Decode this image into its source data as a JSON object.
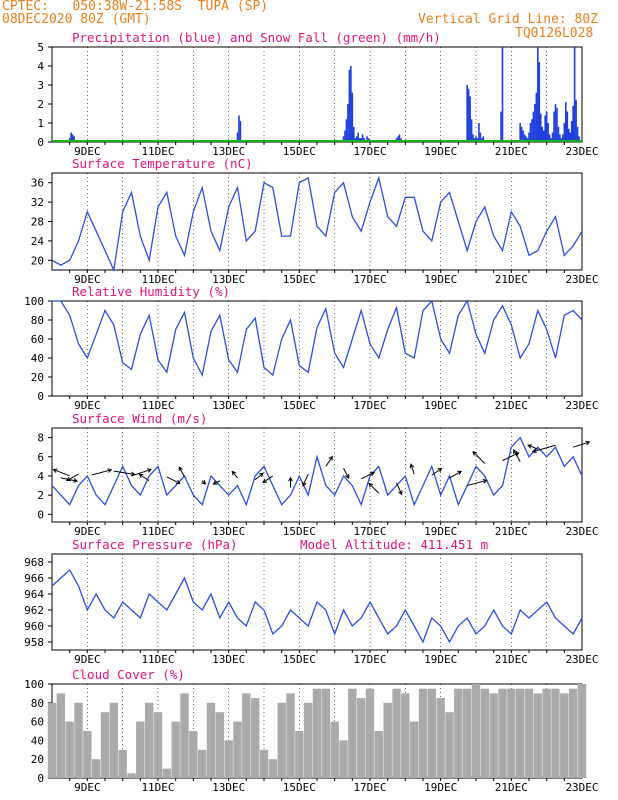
{
  "header": {
    "line1": "CPTEC:   050:38W-21:58S  TUPA (SP)",
    "line2": "08DEC2020 80Z (GMT)",
    "grid_note": "Vertical Grid Line: 80Z",
    "code": "TQ0126L028"
  },
  "colors": {
    "header": "#e8801e",
    "title": "#e0157a",
    "precip": "#1f3fdc",
    "snow": "#17b317",
    "series": "#2d4fe0",
    "cloud": "#aaaaaa",
    "frame": "#000000"
  },
  "x_ticks": [
    "9DEC",
    "11DEC",
    "13DEC",
    "15DEC",
    "17DEC",
    "19DEC",
    "21DEC",
    "23DEC"
  ],
  "chart_data": [
    {
      "id": "precip",
      "type": "bar",
      "title": "Precipitation (blue) and Snow Fall (green) (mm/h)",
      "yticks": [
        0,
        1,
        2,
        3,
        4,
        5
      ],
      "ylim": [
        0,
        5
      ],
      "x_unit": "hours since 08DEC2020 00Z",
      "xlim": [
        0,
        360
      ],
      "series": [
        {
          "name": "Precipitation",
          "color_key": "precip",
          "x": [
            12,
            13,
            14,
            15,
            126,
            127,
            128,
            198,
            199,
            200,
            201,
            202,
            203,
            204,
            205,
            206,
            207,
            208,
            209,
            210,
            211,
            212,
            213,
            214,
            215,
            234,
            235,
            236,
            237,
            282,
            283,
            284,
            285,
            286,
            287,
            288,
            289,
            290,
            291,
            292,
            293,
            305,
            306,
            318,
            319,
            320,
            321,
            322,
            323,
            324,
            325,
            326,
            327,
            328,
            329,
            330,
            331,
            332,
            333,
            334,
            335,
            336,
            337,
            338,
            339,
            340,
            341,
            342,
            343,
            344,
            345,
            346,
            347,
            348,
            349,
            350,
            351,
            352,
            353,
            354,
            355,
            356,
            357,
            358
          ],
          "values": [
            0.2,
            0.5,
            0.4,
            0.3,
            0.5,
            1.4,
            1.1,
            0.3,
            0.6,
            1.2,
            2.0,
            3.8,
            4.0,
            2.6,
            0.8,
            0.2,
            0.3,
            0.5,
            0.2,
            0.2,
            0.4,
            0.2,
            0.1,
            0.3,
            0.2,
            0.2,
            0.3,
            0.4,
            0.2,
            3.0,
            2.8,
            2.4,
            1.2,
            0.4,
            0.2,
            0.3,
            0.2,
            1.0,
            0.5,
            0.2,
            0.3,
            1.6,
            5.0,
            1.0,
            0.8,
            0.6,
            0.4,
            0.3,
            0.2,
            0.5,
            1.0,
            1.2,
            1.6,
            2.0,
            2.6,
            5.0,
            4.2,
            1.5,
            0.8,
            0.6,
            1.4,
            1.6,
            1.0,
            0.4,
            0.2,
            0.5,
            1.6,
            2.0,
            1.8,
            0.8,
            0.4,
            0.2,
            0.4,
            1.0,
            2.1,
            1.6,
            0.7,
            0.5,
            1.1,
            1.9,
            5.0,
            2.2,
            0.8,
            0.3
          ]
        },
        {
          "name": "Snow Fall",
          "color_key": "snow",
          "x": [
            0,
            360
          ],
          "values": [
            0,
            0
          ]
        }
      ]
    },
    {
      "id": "temp",
      "type": "line",
      "title": "Surface Temperature (nC)",
      "yticks": [
        20,
        24,
        28,
        32,
        36
      ],
      "ylim": [
        18,
        38
      ],
      "x_unit": "hours since 08DEC2020 00Z",
      "xlim": [
        0,
        360
      ],
      "series": [
        {
          "name": "Temperature",
          "color_key": "series",
          "x": [
            0,
            6,
            12,
            18,
            24,
            30,
            36,
            42,
            48,
            54,
            60,
            66,
            72,
            78,
            84,
            90,
            96,
            102,
            108,
            114,
            120,
            126,
            132,
            138,
            144,
            150,
            156,
            162,
            168,
            174,
            180,
            186,
            192,
            198,
            204,
            210,
            216,
            222,
            228,
            234,
            240,
            246,
            252,
            258,
            264,
            270,
            276,
            282,
            288,
            294,
            300,
            306,
            312,
            318,
            324,
            330,
            336,
            342,
            348,
            354,
            360
          ],
          "values": [
            20,
            19,
            20,
            24,
            30,
            26,
            22,
            18,
            30,
            34,
            25,
            20,
            31,
            34,
            25,
            21,
            30,
            35,
            26,
            22,
            31,
            35,
            24,
            26,
            36,
            35,
            25,
            25,
            36,
            37,
            27,
            25,
            34,
            36,
            29,
            26,
            32,
            37,
            29,
            27,
            33,
            33,
            26,
            24,
            32,
            34,
            28,
            22,
            28,
            31,
            25,
            22,
            30,
            27,
            21,
            22,
            26,
            29,
            21,
            23,
            26
          ]
        }
      ]
    },
    {
      "id": "rh",
      "type": "line",
      "title": "Relative Humidity (%)",
      "yticks": [
        0,
        20,
        40,
        60,
        80,
        100
      ],
      "ylim": [
        0,
        100
      ],
      "x_unit": "hours since 08DEC2020 00Z",
      "xlim": [
        0,
        360
      ],
      "series": [
        {
          "name": "Relative Humidity",
          "color_key": "series",
          "x": [
            0,
            6,
            12,
            18,
            24,
            30,
            36,
            42,
            48,
            54,
            60,
            66,
            72,
            78,
            84,
            90,
            96,
            102,
            108,
            114,
            120,
            126,
            132,
            138,
            144,
            150,
            156,
            162,
            168,
            174,
            180,
            186,
            192,
            198,
            204,
            210,
            216,
            222,
            228,
            234,
            240,
            246,
            252,
            258,
            264,
            270,
            276,
            282,
            288,
            294,
            300,
            306,
            312,
            318,
            324,
            330,
            336,
            342,
            348,
            354,
            360
          ],
          "values": [
            100,
            100,
            85,
            55,
            40,
            65,
            90,
            75,
            35,
            28,
            65,
            85,
            38,
            25,
            70,
            88,
            40,
            22,
            68,
            85,
            38,
            25,
            70,
            82,
            30,
            22,
            60,
            80,
            32,
            25,
            72,
            92,
            45,
            30,
            60,
            90,
            55,
            40,
            70,
            93,
            45,
            40,
            90,
            100,
            60,
            45,
            85,
            100,
            65,
            45,
            80,
            95,
            75,
            40,
            55,
            90,
            70,
            40,
            85,
            90,
            80
          ]
        }
      ]
    },
    {
      "id": "wind",
      "type": "line",
      "title": "Surface Wind (m/s)",
      "yticks": [
        0,
        2,
        4,
        6,
        8
      ],
      "ylim": [
        -0.8,
        9
      ],
      "x_unit": "hours since 08DEC2020 00Z",
      "xlim": [
        0,
        360
      ],
      "series": [
        {
          "name": "Wind Speed",
          "color_key": "series",
          "x": [
            0,
            6,
            12,
            18,
            24,
            30,
            36,
            42,
            48,
            54,
            60,
            66,
            72,
            78,
            84,
            90,
            96,
            102,
            108,
            114,
            120,
            126,
            132,
            138,
            144,
            150,
            156,
            162,
            168,
            174,
            180,
            186,
            192,
            198,
            204,
            210,
            216,
            222,
            228,
            234,
            240,
            246,
            252,
            258,
            264,
            270,
            276,
            282,
            288,
            294,
            300,
            306,
            312,
            318,
            324,
            330,
            336,
            342,
            348,
            354,
            360
          ],
          "values": [
            3,
            2,
            1,
            3,
            4,
            2,
            1,
            3,
            5,
            3,
            2,
            4,
            5,
            2,
            3,
            4,
            2,
            1,
            4,
            3,
            2,
            3,
            1,
            4,
            5,
            3,
            1,
            2,
            4,
            2,
            6,
            3,
            2,
            4,
            3,
            1,
            4,
            5,
            2,
            3,
            4,
            1,
            3,
            5,
            2,
            4,
            1,
            3,
            5,
            4,
            2,
            3,
            7,
            8,
            6,
            7,
            6,
            7,
            5,
            6,
            4
          ]
        }
      ],
      "arrows": {
        "x": [
          6,
          12,
          18,
          27,
          42,
          54,
          66,
          78,
          90,
          102,
          114,
          126,
          138,
          150,
          162,
          174,
          186,
          198,
          210,
          222,
          234,
          246,
          258,
          270,
          282,
          294,
          306,
          318,
          330,
          342,
          354
        ],
        "speed": [
          3.8,
          4.0,
          4.2,
          4.1,
          4.5,
          4.0,
          3.5,
          3.9,
          3.9,
          3.5,
          3.5,
          3.8,
          3.6,
          4.0,
          2.8,
          4.2,
          5.0,
          4.8,
          3.7,
          2.2,
          3.3,
          4.2,
          4.1,
          3.8,
          3.0,
          5.3,
          5.6,
          5.5,
          6.8,
          7.2,
          7.0
        ],
        "u": [
          2.5,
          -2.5,
          -1.8,
          3.0,
          3.2,
          3.0,
          -1.5,
          2.0,
          -0.8,
          0.5,
          -1.0,
          -0.8,
          1.2,
          -1.5,
          0.0,
          -0.8,
          1.0,
          0.8,
          2.0,
          -1.5,
          0.8,
          -0.5,
          1.5,
          1.8,
          3.0,
          -1.8,
          2.5,
          -1.0,
          -1.5,
          -3.5,
          2.5
        ],
        "v": [
          -0.5,
          1.0,
          -1.0,
          0.8,
          -0.5,
          1.0,
          1.0,
          -1.0,
          1.5,
          -0.5,
          -0.5,
          1.0,
          1.0,
          -1.0,
          1.5,
          -1.8,
          1.5,
          -1.5,
          1.0,
          1.5,
          -1.8,
          1.5,
          1.0,
          1.0,
          0.8,
          1.8,
          1.2,
          1.8,
          0.6,
          -1.0,
          0.8
        ]
      }
    },
    {
      "id": "pres",
      "type": "line",
      "title": "Surface Pressure (hPa)",
      "subtitle": "Model Altitude: 411.451  m",
      "yticks": [
        958,
        960,
        962,
        964,
        966,
        968
      ],
      "ylim": [
        957,
        969
      ],
      "x_unit": "hours since 08DEC2020 00Z",
      "xlim": [
        0,
        360
      ],
      "series": [
        {
          "name": "Pressure",
          "color_key": "series",
          "x": [
            0,
            6,
            12,
            18,
            24,
            30,
            36,
            42,
            48,
            54,
            60,
            66,
            72,
            78,
            84,
            90,
            96,
            102,
            108,
            114,
            120,
            126,
            132,
            138,
            144,
            150,
            156,
            162,
            168,
            174,
            180,
            186,
            192,
            198,
            204,
            210,
            216,
            222,
            228,
            234,
            240,
            246,
            252,
            258,
            264,
            270,
            276,
            282,
            288,
            294,
            300,
            306,
            312,
            318,
            324,
            330,
            336,
            342,
            348,
            354,
            360
          ],
          "values": [
            965,
            966,
            967,
            965,
            962,
            964,
            962,
            961,
            963,
            962,
            961,
            964,
            963,
            962,
            964,
            966,
            963,
            962,
            964,
            961,
            963,
            961,
            960,
            963,
            962,
            959,
            960,
            962,
            961,
            960,
            963,
            962,
            959,
            962,
            960,
            961,
            963,
            961,
            959,
            960,
            962,
            960,
            958,
            961,
            960,
            958,
            960,
            961,
            959,
            960,
            962,
            960,
            959,
            962,
            961,
            962,
            963,
            961,
            960,
            959,
            961
          ]
        }
      ]
    },
    {
      "id": "cloud",
      "type": "bar",
      "title": "Cloud Cover (%)",
      "yticks": [
        0,
        20,
        40,
        60,
        80,
        100
      ],
      "ylim": [
        0,
        100
      ],
      "x_unit": "hours since 08DEC2020 00Z",
      "xlim": [
        0,
        360
      ],
      "series": [
        {
          "name": "Cloud Cover",
          "color_key": "cloud",
          "x": [
            0,
            6,
            12,
            18,
            24,
            30,
            36,
            42,
            48,
            54,
            60,
            66,
            72,
            78,
            84,
            90,
            96,
            102,
            108,
            114,
            120,
            126,
            132,
            138,
            144,
            150,
            156,
            162,
            168,
            174,
            180,
            186,
            192,
            198,
            204,
            210,
            216,
            222,
            228,
            234,
            240,
            246,
            252,
            258,
            264,
            270,
            276,
            282,
            288,
            294,
            300,
            306,
            312,
            318,
            324,
            330,
            336,
            342,
            348,
            354,
            360
          ],
          "values": [
            80,
            90,
            60,
            80,
            50,
            20,
            70,
            80,
            30,
            5,
            60,
            80,
            70,
            10,
            60,
            90,
            50,
            30,
            80,
            70,
            40,
            60,
            90,
            85,
            30,
            20,
            80,
            90,
            50,
            80,
            95,
            95,
            60,
            40,
            95,
            85,
            95,
            50,
            80,
            95,
            90,
            60,
            95,
            95,
            85,
            70,
            95,
            95,
            100,
            95,
            90,
            95,
            95,
            95,
            95,
            90,
            95,
            95,
            90,
            95,
            100
          ]
        }
      ]
    }
  ]
}
